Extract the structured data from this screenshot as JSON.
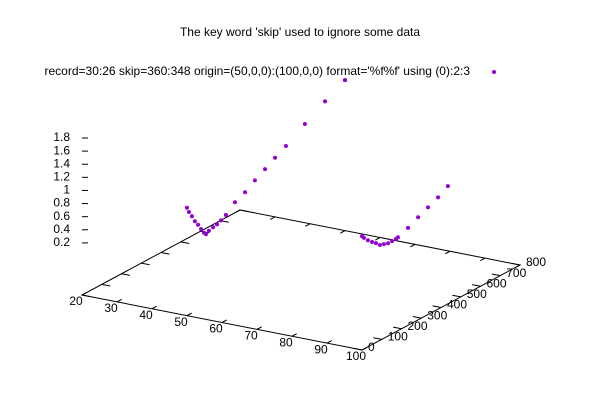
{
  "chart_data": {
    "type": "scatter3d",
    "title": "The key word 'skip' used to ignore some data",
    "series": [
      {
        "name": "record=30:26 skip=360:348 origin=(50,0,0):(100,0,0) format='%f%f' using (0):2:3",
        "color": "#9400d3",
        "x": [
          50,
          50,
          50,
          50,
          50,
          50,
          50,
          50,
          50,
          50,
          50,
          50,
          50,
          50,
          50,
          50,
          50,
          50,
          50,
          50,
          50,
          50,
          50,
          100,
          100,
          100,
          100,
          100,
          100,
          100,
          100,
          100,
          100,
          100,
          100,
          100,
          100,
          100,
          100
        ],
        "y": [
          0,
          10,
          25,
          40,
          56,
          71,
          86,
          96,
          111,
          132,
          152,
          172,
          197,
          243,
          294,
          344,
          395,
          446,
          501,
          597,
          699,
          800,
          800,
          0,
          10,
          30,
          51,
          71,
          91,
          111,
          132,
          152,
          172,
          182,
          233,
          284,
          334,
          385,
          435
        ],
        "z": [
          1.05,
          0.97,
          0.88,
          0.78,
          0.7,
          0.61,
          0.53,
          0.49,
          0.52,
          0.54,
          0.55,
          0.58,
          0.62,
          0.74,
          0.81,
          0.91,
          1.0,
          1.09,
          1.18,
          1.36,
          1.54,
          1.7,
          1.7,
          1.14,
          1.1,
          1.03,
          0.97,
          0.92,
          0.86,
          0.84,
          0.82,
          0.82,
          0.82,
          0.83,
          0.89,
          0.97,
          1.04,
          1.11,
          1.2
        ]
      }
    ],
    "xlim": [
      20,
      100
    ],
    "xticks": [
      20,
      30,
      40,
      50,
      60,
      70,
      80,
      90,
      100
    ],
    "ylim": [
      0,
      800
    ],
    "yticks": [
      0,
      100,
      200,
      300,
      400,
      500,
      600,
      700,
      800
    ],
    "zlim": [
      0,
      1.8
    ],
    "zticks": [
      0.2,
      0.4,
      0.6,
      0.8,
      1,
      1.2,
      1.4,
      1.6,
      1.8
    ]
  }
}
